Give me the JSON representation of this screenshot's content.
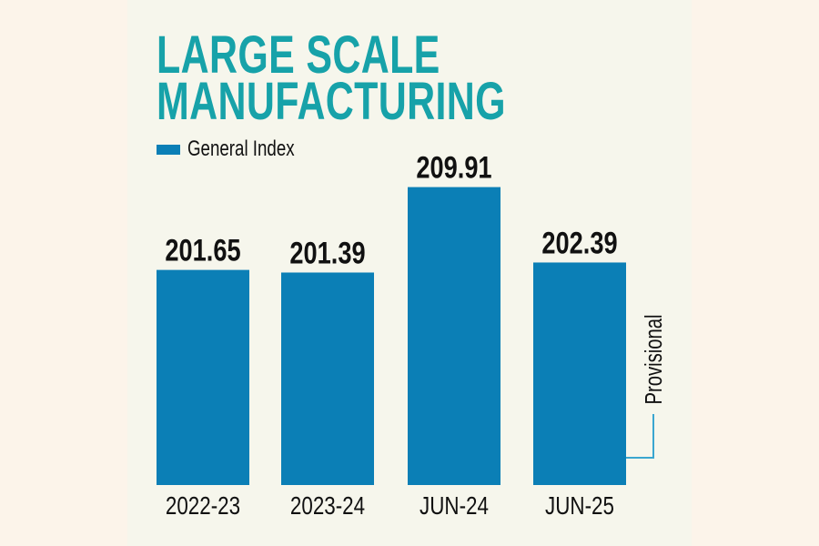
{
  "chart_data": {
    "type": "bar",
    "title": "LARGE SCALE MANUFACTURING",
    "title_lines": [
      "LARGE SCALE",
      "MANUFACTURING"
    ],
    "legend": [
      "General Index"
    ],
    "categories": [
      "2022-23",
      "2023-24",
      "JUN-24",
      "JUN-25"
    ],
    "values": [
      201.65,
      201.39,
      209.91,
      202.39
    ],
    "value_labels": [
      "201.65",
      "201.39",
      "209.91",
      "202.39"
    ],
    "annotation": {
      "text": "Provisional",
      "category": "JUN-25"
    },
    "xlabel": "",
    "ylabel": "",
    "ylim": [
      180.2,
      215
    ],
    "grid": false,
    "legend_position": "top-left"
  },
  "colors": {
    "bar": "#0b7fb6",
    "title": "#17a2a9",
    "annotation_line": "#3aa6d0"
  }
}
